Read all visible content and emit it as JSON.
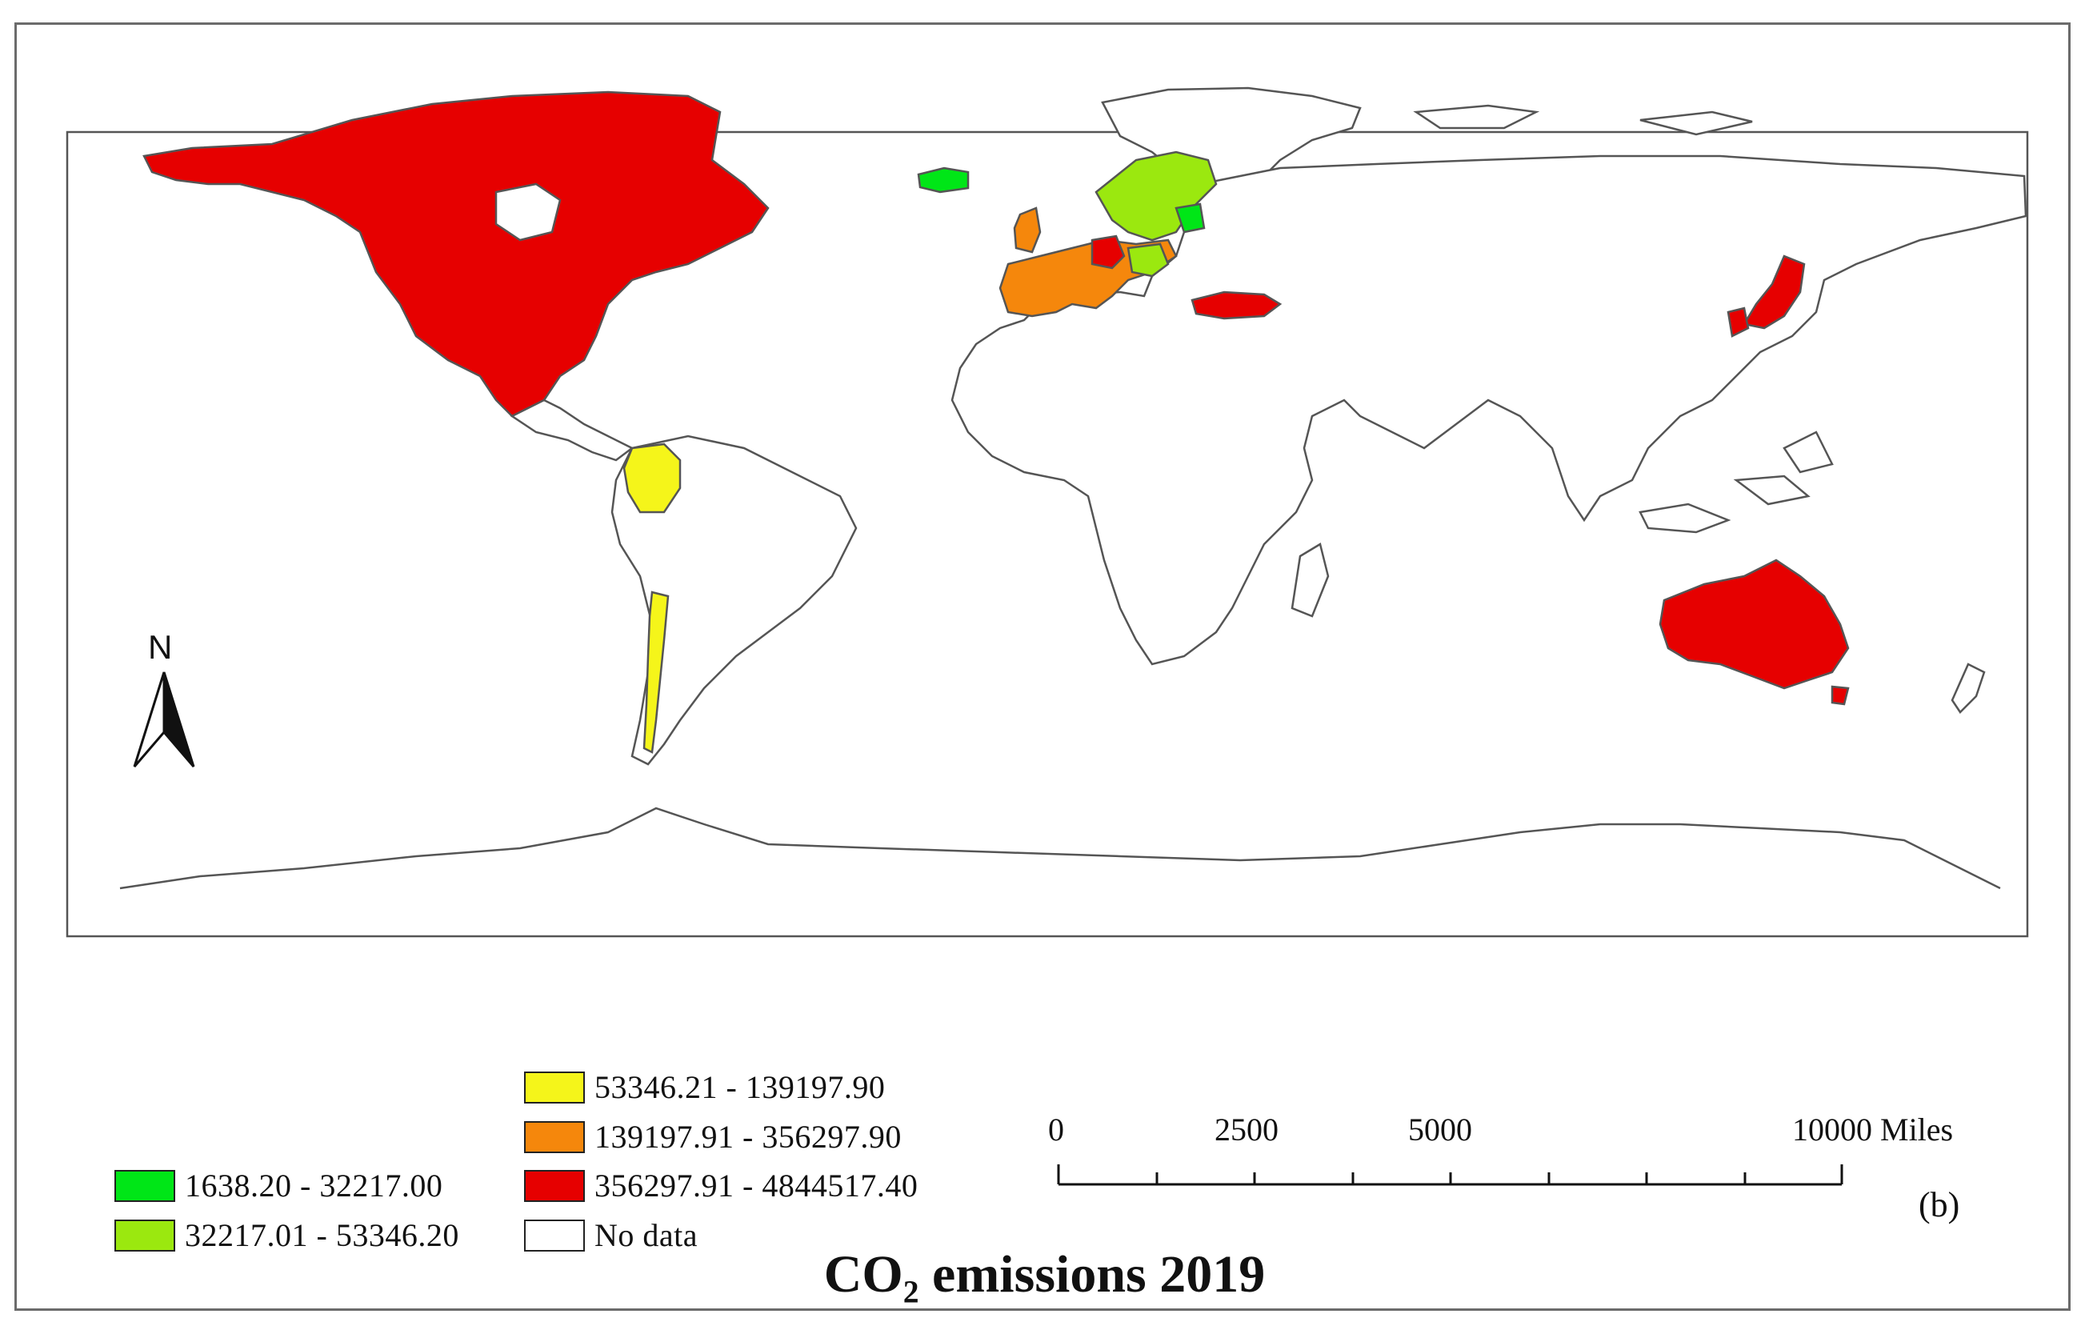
{
  "title": "CO₂ emissions 2019",
  "panel_label": "(b)",
  "north_label": "N",
  "legend": {
    "items": [
      {
        "range": "1638.20 - 32217.00",
        "color": "#00e617"
      },
      {
        "range": "32217.01 - 53346.20",
        "color": "#9be80f"
      },
      {
        "range": "53346.21 - 139197.90",
        "color": "#f5f51a"
      },
      {
        "range": "139197.91 - 356297.90",
        "color": "#f5870c"
      },
      {
        "range": "356297.91 - 4844517.40",
        "color": "#e60000"
      },
      {
        "range": "No data",
        "color": "#ffffff"
      }
    ]
  },
  "scale_bar": {
    "labels": [
      "0",
      "2500",
      "5000",
      "10000 Miles"
    ]
  },
  "regions": [
    {
      "name": "North America",
      "class": "356297.91 - 4844517.40"
    },
    {
      "name": "Australia",
      "class": "356297.91 - 4844517.40"
    },
    {
      "name": "Japan",
      "class": "356297.91 - 4844517.40"
    },
    {
      "name": "Turkey",
      "class": "356297.91 - 4844517.40"
    },
    {
      "name": "Germany",
      "class": "356297.91 - 4844517.40"
    },
    {
      "name": "Colombia",
      "class": "53346.21 - 139197.90"
    },
    {
      "name": "Chile",
      "class": "53346.21 - 139197.90"
    },
    {
      "name": "Western Europe",
      "class": "139197.91 - 356297.90"
    },
    {
      "name": "Scandinavia",
      "class": "32217.01 - 53346.20"
    },
    {
      "name": "Iceland",
      "class": "1638.20 - 32217.00"
    }
  ]
}
